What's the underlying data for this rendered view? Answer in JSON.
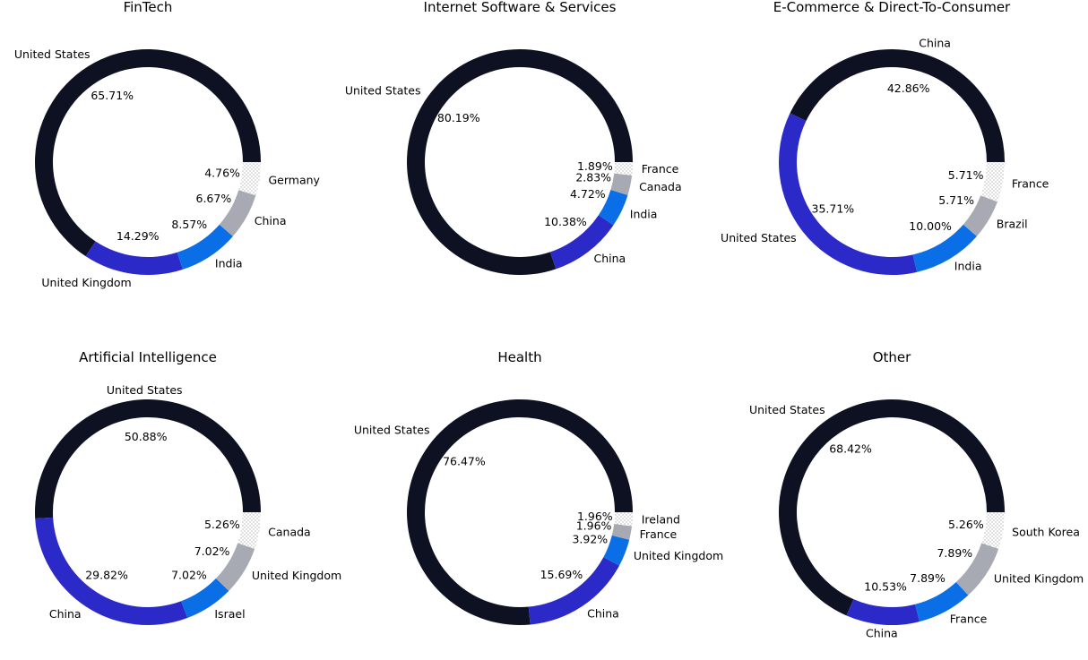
{
  "colors": [
    "#0d1121",
    "#2b2ac9",
    "#0a6fe6",
    "#a7aab3"
  ],
  "chart_data": [
    {
      "type": "pie",
      "title": "FinTech",
      "slices": [
        {
          "label": "United States",
          "value": 65.71,
          "pct": "65.71%"
        },
        {
          "label": "United Kingdom",
          "value": 14.29,
          "pct": "14.29%"
        },
        {
          "label": "India",
          "value": 8.57,
          "pct": "8.57%"
        },
        {
          "label": "China",
          "value": 6.67,
          "pct": "6.67%"
        },
        {
          "label": "Germany",
          "value": 4.76,
          "pct": "4.76%"
        }
      ]
    },
    {
      "type": "pie",
      "title": "Internet Software & Services",
      "slices": [
        {
          "label": "United States",
          "value": 80.19,
          "pct": "80.19%"
        },
        {
          "label": "China",
          "value": 10.38,
          "pct": "10.38%"
        },
        {
          "label": "India",
          "value": 4.72,
          "pct": "4.72%"
        },
        {
          "label": "Canada",
          "value": 2.83,
          "pct": "2.83%"
        },
        {
          "label": "France",
          "value": 1.89,
          "pct": "1.89%"
        }
      ]
    },
    {
      "type": "pie",
      "title": "E-Commerce & Direct-To-Consumer",
      "slices": [
        {
          "label": "China",
          "value": 42.86,
          "pct": "42.86%"
        },
        {
          "label": "United States",
          "value": 35.71,
          "pct": "35.71%"
        },
        {
          "label": "India",
          "value": 10.0,
          "pct": "10.00%"
        },
        {
          "label": "Brazil",
          "value": 5.71,
          "pct": "5.71%"
        },
        {
          "label": "France",
          "value": 5.71,
          "pct": "5.71%"
        }
      ]
    },
    {
      "type": "pie",
      "title": "Artificial Intelligence",
      "slices": [
        {
          "label": "United States",
          "value": 50.88,
          "pct": "50.88%"
        },
        {
          "label": "China",
          "value": 29.82,
          "pct": "29.82%"
        },
        {
          "label": "Israel",
          "value": 7.02,
          "pct": "7.02%"
        },
        {
          "label": "United Kingdom",
          "value": 7.02,
          "pct": "7.02%"
        },
        {
          "label": "Canada",
          "value": 5.26,
          "pct": "5.26%"
        }
      ]
    },
    {
      "type": "pie",
      "title": "Health",
      "slices": [
        {
          "label": "United States",
          "value": 76.47,
          "pct": "76.47%"
        },
        {
          "label": "China",
          "value": 15.69,
          "pct": "15.69%"
        },
        {
          "label": "United Kingdom",
          "value": 3.92,
          "pct": "3.92%"
        },
        {
          "label": "France",
          "value": 1.96,
          "pct": "1.96%"
        },
        {
          "label": "Ireland",
          "value": 1.96,
          "pct": "1.96%"
        }
      ]
    },
    {
      "type": "pie",
      "title": "Other",
      "slices": [
        {
          "label": "United States",
          "value": 68.42,
          "pct": "68.42%"
        },
        {
          "label": "China",
          "value": 10.53,
          "pct": "10.53%"
        },
        {
          "label": "France",
          "value": 7.89,
          "pct": "7.89%"
        },
        {
          "label": "United Kingdom",
          "value": 7.89,
          "pct": "7.89%"
        },
        {
          "label": "South Korea",
          "value": 5.26,
          "pct": "5.26%"
        }
      ]
    }
  ]
}
